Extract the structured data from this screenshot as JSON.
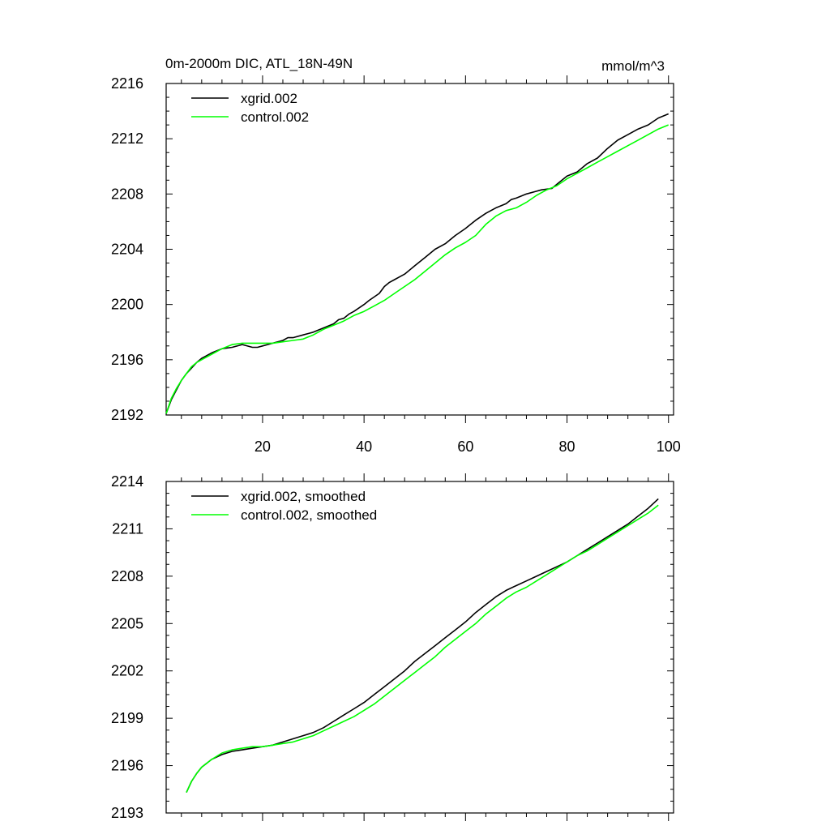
{
  "chart_data": [
    {
      "type": "line",
      "title": "0m-2000m DIC, ATL_18N-49N",
      "units": "mmol/m^3",
      "xlim": [
        1,
        101
      ],
      "ylim": [
        2192,
        2216
      ],
      "xticks": [
        20,
        40,
        60,
        80,
        100
      ],
      "xtick_labels": [
        "20",
        "40",
        "60",
        "80",
        "100"
      ],
      "yticks": [
        2192,
        2196,
        2200,
        2204,
        2208,
        2212,
        2216
      ],
      "ytick_labels": [
        "2192",
        "2196",
        "2200",
        "2204",
        "2208",
        "2212",
        "2216"
      ],
      "legend": "top-left",
      "series": [
        {
          "name": "xgrid.002",
          "color": "#000000",
          "x": [
            1,
            2,
            3,
            4,
            5,
            6,
            7,
            8,
            10,
            12,
            14,
            16,
            18,
            19,
            20,
            21,
            22,
            24,
            25,
            26,
            28,
            29,
            30,
            32,
            34,
            35,
            36,
            37,
            38,
            40,
            41,
            43,
            44,
            45,
            46,
            47,
            48,
            50,
            52,
            54,
            56,
            58,
            60,
            61,
            62,
            64,
            65,
            66,
            68,
            69,
            70,
            72,
            74,
            75,
            77,
            78,
            80,
            82,
            84,
            86,
            88,
            90,
            92,
            94,
            96,
            98,
            100
          ],
          "y": [
            2192.1,
            2193.1,
            2193.8,
            2194.5,
            2195.0,
            2195.4,
            2195.8,
            2196.1,
            2196.5,
            2196.8,
            2196.9,
            2197.1,
            2196.9,
            2196.9,
            2197.0,
            2197.1,
            2197.2,
            2197.4,
            2197.6,
            2197.6,
            2197.8,
            2197.9,
            2198.0,
            2198.3,
            2198.6,
            2198.9,
            2199.0,
            2199.3,
            2199.5,
            2200.0,
            2200.3,
            2200.8,
            2201.3,
            2201.6,
            2201.8,
            2202.0,
            2202.2,
            2202.8,
            2203.4,
            2204.0,
            2204.4,
            2205.0,
            2205.5,
            2205.8,
            2206.1,
            2206.6,
            2206.8,
            2207.0,
            2207.3,
            2207.6,
            2207.7,
            2208.0,
            2208.2,
            2208.3,
            2208.4,
            2208.7,
            2209.3,
            2209.6,
            2210.2,
            2210.6,
            2211.3,
            2211.9,
            2212.3,
            2212.7,
            2213.0,
            2213.5,
            2213.8
          ]
        },
        {
          "name": "control.002",
          "color": "#00ff00",
          "x": [
            1,
            2,
            3,
            4,
            5,
            6,
            7,
            8,
            10,
            12,
            14,
            16,
            18,
            20,
            22,
            24,
            26,
            28,
            30,
            32,
            34,
            36,
            38,
            40,
            42,
            44,
            46,
            48,
            50,
            52,
            54,
            56,
            58,
            60,
            62,
            64,
            66,
            68,
            70,
            72,
            74,
            76,
            78,
            80,
            82,
            84,
            86,
            88,
            90,
            92,
            94,
            96,
            98,
            100
          ],
          "y": [
            2192.1,
            2193.2,
            2193.9,
            2194.5,
            2195.0,
            2195.5,
            2195.8,
            2196.0,
            2196.4,
            2196.8,
            2197.1,
            2197.2,
            2197.2,
            2197.2,
            2197.2,
            2197.3,
            2197.4,
            2197.5,
            2197.8,
            2198.2,
            2198.5,
            2198.8,
            2199.2,
            2199.5,
            2199.9,
            2200.3,
            2200.8,
            2201.3,
            2201.8,
            2202.4,
            2203.0,
            2203.6,
            2204.1,
            2204.5,
            2205.0,
            2205.8,
            2206.4,
            2206.8,
            2207.0,
            2207.4,
            2207.9,
            2208.3,
            2208.6,
            2209.1,
            2209.5,
            2209.9,
            2210.3,
            2210.7,
            2211.1,
            2211.5,
            2211.9,
            2212.3,
            2212.7,
            2213.0
          ]
        }
      ]
    },
    {
      "type": "line",
      "title": "",
      "xlim": [
        1,
        101
      ],
      "ylim": [
        2193,
        2214
      ],
      "xticks": [
        20,
        40,
        60,
        80,
        100
      ],
      "xtick_labels": [
        "",
        "",
        "",
        "",
        ""
      ],
      "yticks": [
        2193,
        2196,
        2199,
        2202,
        2205,
        2208,
        2211,
        2214
      ],
      "ytick_labels": [
        "2193",
        "2196",
        "2199",
        "2202",
        "2205",
        "2208",
        "2211",
        "2214"
      ],
      "legend": "top-left",
      "series": [
        {
          "name": "xgrid.002, smoothed",
          "color": "#000000",
          "x": [
            5,
            6,
            7,
            8,
            10,
            12,
            14,
            16,
            18,
            20,
            22,
            24,
            26,
            28,
            30,
            32,
            34,
            36,
            38,
            40,
            42,
            44,
            46,
            48,
            50,
            52,
            54,
            56,
            58,
            60,
            62,
            64,
            66,
            68,
            70,
            72,
            74,
            76,
            78,
            80,
            82,
            84,
            86,
            88,
            90,
            92,
            94,
            96,
            98
          ],
          "y": [
            2194.3,
            2195.0,
            2195.5,
            2195.9,
            2196.4,
            2196.7,
            2196.9,
            2197.0,
            2197.1,
            2197.2,
            2197.3,
            2197.5,
            2197.7,
            2197.9,
            2198.1,
            2198.4,
            2198.8,
            2199.2,
            2199.6,
            2200.0,
            2200.5,
            2201.0,
            2201.5,
            2202.0,
            2202.6,
            2203.1,
            2203.6,
            2204.1,
            2204.6,
            2205.1,
            2205.7,
            2206.2,
            2206.7,
            2207.1,
            2207.4,
            2207.7,
            2208.0,
            2208.3,
            2208.6,
            2208.9,
            2209.3,
            2209.7,
            2210.1,
            2210.5,
            2210.9,
            2211.3,
            2211.8,
            2212.3,
            2212.9
          ]
        },
        {
          "name": "control.002, smoothed",
          "color": "#00ff00",
          "x": [
            5,
            6,
            7,
            8,
            10,
            12,
            14,
            16,
            18,
            20,
            22,
            24,
            26,
            28,
            30,
            32,
            34,
            36,
            38,
            40,
            42,
            44,
            46,
            48,
            50,
            52,
            54,
            56,
            58,
            60,
            62,
            64,
            66,
            68,
            70,
            72,
            74,
            76,
            78,
            80,
            82,
            84,
            86,
            88,
            90,
            92,
            94,
            96,
            98
          ],
          "y": [
            2194.3,
            2195.0,
            2195.5,
            2195.9,
            2196.4,
            2196.8,
            2197.0,
            2197.1,
            2197.2,
            2197.2,
            2197.3,
            2197.4,
            2197.5,
            2197.7,
            2197.9,
            2198.2,
            2198.5,
            2198.8,
            2199.1,
            2199.5,
            2199.9,
            2200.4,
            2200.9,
            2201.4,
            2201.9,
            2202.4,
            2202.9,
            2203.5,
            2204.0,
            2204.5,
            2205.0,
            2205.6,
            2206.1,
            2206.6,
            2207.0,
            2207.3,
            2207.7,
            2208.1,
            2208.5,
            2208.9,
            2209.3,
            2209.6,
            2210.0,
            2210.4,
            2210.8,
            2211.2,
            2211.6,
            2212.0,
            2212.5
          ]
        }
      ]
    }
  ]
}
